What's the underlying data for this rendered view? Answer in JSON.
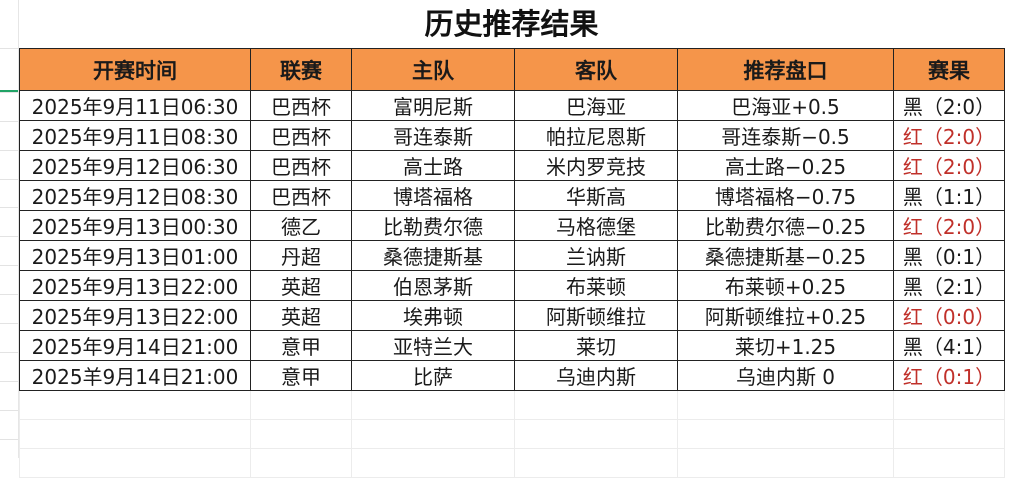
{
  "title": "历史推荐结果",
  "columns": [
    "开赛时间",
    "联赛",
    "主队",
    "客队",
    "推荐盘口",
    "赛果"
  ],
  "colors": {
    "header_bg": "#f5954a",
    "red": "#c0302a",
    "black": "#1a1a1a"
  },
  "rows": [
    {
      "time": "2025年9月11日06:30",
      "league": "巴西杯",
      "home": "富明尼斯",
      "away": "巴海亚",
      "pick": "巴海亚+0.5",
      "result": "黑（2:0）",
      "color": "black"
    },
    {
      "time": "2025年9月11日08:30",
      "league": "巴西杯",
      "home": "哥连泰斯",
      "away": "帕拉尼恩斯",
      "pick": "哥连泰斯−0.5",
      "result": "红（2:0）",
      "color": "red"
    },
    {
      "time": "2025年9月12日06:30",
      "league": "巴西杯",
      "home": "高士路",
      "away": "米内罗竞技",
      "pick": "高士路−0.25",
      "result": "红（2:0）",
      "color": "red"
    },
    {
      "time": "2025年9月12日08:30",
      "league": "巴西杯",
      "home": "博塔福格",
      "away": "华斯高",
      "pick": "博塔福格−0.75",
      "result": "黑（1:1）",
      "color": "black"
    },
    {
      "time": "2025年9月13日00:30",
      "league": "德乙",
      "home": "比勒费尔德",
      "away": "马格德堡",
      "pick": "比勒费尔德−0.25",
      "result": "红（2:0）",
      "color": "red"
    },
    {
      "time": "2025年9月13日01:00",
      "league": "丹超",
      "home": "桑德捷斯基",
      "away": "兰讷斯",
      "pick": "桑德捷斯基−0.25",
      "result": "黑（0:1）",
      "color": "black"
    },
    {
      "time": "2025年9月13日22:00",
      "league": "英超",
      "home": "伯恩茅斯",
      "away": "布莱顿",
      "pick": "布莱顿+0.25",
      "result": "黑（2:1）",
      "color": "black"
    },
    {
      "time": "2025年9月13日22:00",
      "league": "英超",
      "home": "埃弗顿",
      "away": "阿斯顿维拉",
      "pick": "阿斯顿维拉+0.25",
      "result": "红（0:0）",
      "color": "red"
    },
    {
      "time": "2025年9月14日21:00",
      "league": "意甲",
      "home": "亚特兰大",
      "away": "莱切",
      "pick": "莱切+1.25",
      "result": "黑（4:1）",
      "color": "black"
    },
    {
      "time": "2025羊9月14日21:00",
      "league": "意甲",
      "home": "比萨",
      "away": "乌迪内斯",
      "pick": "乌迪内斯 0",
      "result": "红（0:1）",
      "color": "red"
    }
  ]
}
